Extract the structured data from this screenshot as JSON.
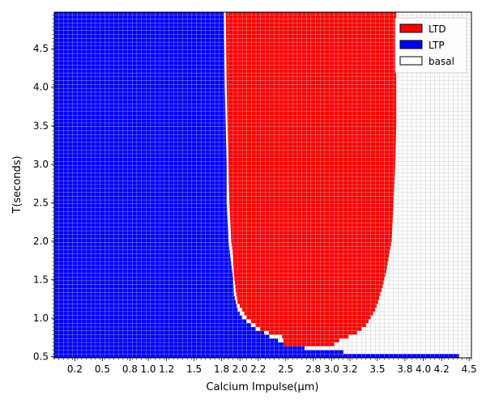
{
  "chart_data": {
    "type": "heatmap",
    "xlabel": "Calcium Impulse(μm)",
    "ylabel": "T(seconds)",
    "xlim": [
      0.0,
      4.55
    ],
    "ylim": [
      0.48,
      4.97
    ],
    "x_ticks": [
      "0.2",
      "0.5",
      "0.8",
      "1.0",
      "1.2",
      "1.5",
      "1.8",
      "2.0",
      "2.2",
      "2.5",
      "2.8",
      "3.0",
      "3.2",
      "3.5",
      "3.8",
      "4.0",
      "4.2",
      "4.5"
    ],
    "y_ticks": [
      "0.5",
      "1.0",
      "1.5",
      "2.0",
      "2.5",
      "3.0",
      "3.5",
      "4.0",
      "4.5"
    ],
    "cell_width_um": 0.05,
    "cell_height_s": 0.05,
    "grid": true,
    "legend": {
      "placement": "top-right",
      "entries": [
        {
          "label": "LTD",
          "color": "#ff0000"
        },
        {
          "label": "LTP",
          "color": "#0000ff"
        },
        {
          "label": "basal",
          "color": "#ffffff"
        }
      ]
    },
    "ltp_upper_boundary_um": [
      [
        0.5,
        4.55
      ],
      [
        0.55,
        3.2
      ],
      [
        0.6,
        2.75
      ],
      [
        0.65,
        2.55
      ],
      [
        0.7,
        2.45
      ],
      [
        0.75,
        2.35
      ],
      [
        0.8,
        2.3
      ],
      [
        0.85,
        2.2
      ],
      [
        0.9,
        2.15
      ],
      [
        0.95,
        2.1
      ],
      [
        1.0,
        2.05
      ],
      [
        1.1,
        2.0
      ],
      [
        1.2,
        1.98
      ],
      [
        1.3,
        1.96
      ],
      [
        1.5,
        1.95
      ],
      [
        1.8,
        1.92
      ],
      [
        2.0,
        1.9
      ],
      [
        2.5,
        1.88
      ],
      [
        3.0,
        1.88
      ],
      [
        3.5,
        1.87
      ],
      [
        4.0,
        1.86
      ],
      [
        4.97,
        1.85
      ]
    ],
    "ltd_region": {
      "left_edge_um": [
        [
          0.75,
          2.5
        ],
        [
          0.8,
          2.35
        ],
        [
          0.85,
          2.25
        ],
        [
          0.9,
          2.2
        ],
        [
          0.95,
          2.15
        ],
        [
          1.0,
          2.1
        ],
        [
          1.1,
          2.05
        ],
        [
          1.2,
          2.0
        ],
        [
          1.35,
          1.98
        ],
        [
          1.55,
          1.96
        ],
        [
          1.8,
          1.95
        ],
        [
          2.0,
          1.93
        ],
        [
          2.5,
          1.91
        ],
        [
          3.0,
          1.9
        ],
        [
          3.5,
          1.89
        ],
        [
          4.0,
          1.88
        ],
        [
          4.97,
          1.87
        ]
      ],
      "right_edge_um": [
        [
          0.65,
          3.05
        ],
        [
          0.7,
          3.1
        ],
        [
          0.75,
          3.2
        ],
        [
          0.8,
          3.3
        ],
        [
          0.9,
          3.4
        ],
        [
          1.0,
          3.45
        ],
        [
          1.1,
          3.5
        ],
        [
          1.2,
          3.53
        ],
        [
          1.4,
          3.58
        ],
        [
          1.6,
          3.62
        ],
        [
          1.8,
          3.65
        ],
        [
          2.0,
          3.68
        ],
        [
          2.5,
          3.7
        ],
        [
          3.0,
          3.72
        ],
        [
          3.5,
          3.73
        ],
        [
          4.0,
          3.73
        ],
        [
          4.97,
          3.73
        ]
      ]
    }
  }
}
